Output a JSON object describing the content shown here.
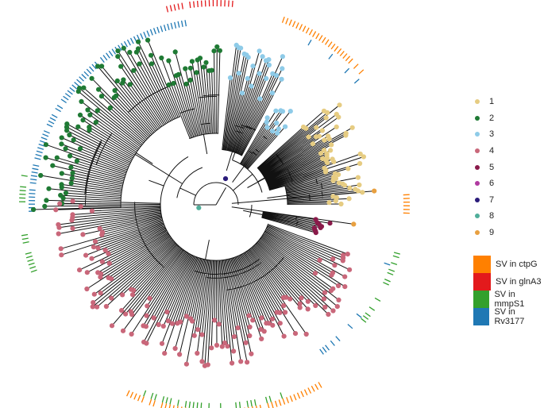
{
  "lineage_legend": {
    "items": [
      {
        "label": "1",
        "color": "#e6cc82"
      },
      {
        "label": "2",
        "color": "#1f7a34"
      },
      {
        "label": "3",
        "color": "#8ecbe8"
      },
      {
        "label": "4",
        "color": "#c9677a"
      },
      {
        "label": "5",
        "color": "#8a1a4a"
      },
      {
        "label": "6",
        "color": "#b03aa0"
      },
      {
        "label": "7",
        "color": "#2a1b7a"
      },
      {
        "label": "8",
        "color": "#4fae9a"
      },
      {
        "label": "9",
        "color": "#e8a040"
      }
    ]
  },
  "sv_legend": {
    "items": [
      {
        "label": "SV in ctpG",
        "color": "#ff8000"
      },
      {
        "label": "SV in glnA3",
        "color": "#e31a1c"
      },
      {
        "label": "SV in mmpS1",
        "color": "#33a02c"
      },
      {
        "label": "SV in Rv3177",
        "color": "#1f78b4"
      }
    ]
  }
}
